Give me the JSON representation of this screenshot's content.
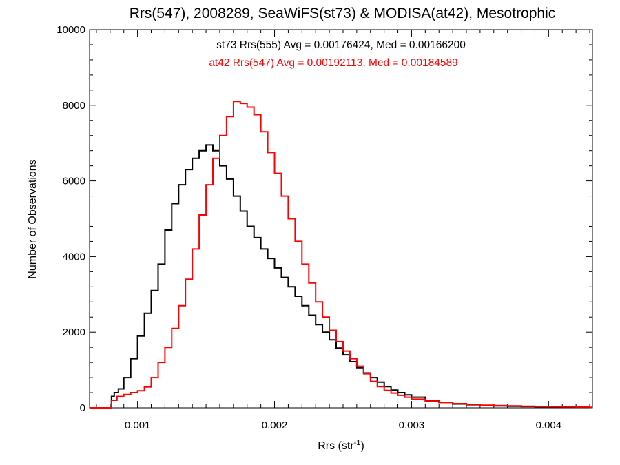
{
  "chart_data": {
    "type": "line",
    "title": "Rrs(547), 2008289, SeaWiFS(st73) & MODISA(at42), Mesotrophic",
    "xlabel": "Rrs (str",
    "xlabel_sup": "-1",
    "xlabel_end": ")",
    "ylabel": "Number of Observations",
    "xlim": [
      0.00065,
      0.00432
    ],
    "ylim": [
      0,
      10000
    ],
    "x_ticks": [
      0.001,
      0.002,
      0.003,
      0.004
    ],
    "x_tick_labels": [
      "0.001",
      "0.002",
      "0.003",
      "0.004"
    ],
    "y_ticks": [
      0,
      2000,
      4000,
      6000,
      8000,
      10000
    ],
    "y_tick_labels": [
      "0",
      "2000",
      "4000",
      "6000",
      "8000",
      "10000"
    ],
    "grid": false,
    "annotations": [
      {
        "text": "st73 Rrs(555) Avg = 0.00176424, Med = 0.00166200",
        "color": "#000000"
      },
      {
        "text": "at42 Rrs(547) Avg = 0.00192113, Med = 0.00184589",
        "color": "#ff0000"
      }
    ],
    "series": [
      {
        "color": "#000000",
        "x": [
          0.00065,
          0.0008,
          0.00081,
          0.00083,
          0.00086,
          0.0009,
          0.00095,
          0.001,
          0.00105,
          0.0011,
          0.00115,
          0.0012,
          0.00125,
          0.0013,
          0.00135,
          0.0014,
          0.00145,
          0.0015,
          0.00155,
          0.0016,
          0.00165,
          0.0017,
          0.00175,
          0.0018,
          0.00185,
          0.0019,
          0.00195,
          0.002,
          0.00205,
          0.0021,
          0.00215,
          0.0022,
          0.00225,
          0.0023,
          0.00235,
          0.0024,
          0.00245,
          0.0025,
          0.00255,
          0.0026,
          0.00265,
          0.0027,
          0.00275,
          0.0028,
          0.00285,
          0.0029,
          0.00295,
          0.003,
          0.0031,
          0.0032,
          0.0033,
          0.0034,
          0.0035,
          0.0036,
          0.0037,
          0.0038,
          0.0039,
          0.004,
          0.0041,
          0.0042,
          0.0043
        ],
        "y": [
          0,
          0,
          300,
          400,
          500,
          800,
          1300,
          1900,
          2500,
          3100,
          3800,
          4700,
          5400,
          5900,
          6300,
          6600,
          6800,
          6950,
          6800,
          6400,
          6050,
          5600,
          5200,
          4800,
          4500,
          4200,
          3950,
          3700,
          3450,
          3200,
          2950,
          2700,
          2450,
          2200,
          2000,
          1800,
          1580,
          1400,
          1220,
          1060,
          920,
          800,
          680,
          560,
          470,
          400,
          340,
          280,
          200,
          140,
          100,
          80,
          60,
          50,
          40,
          35,
          30,
          25,
          20,
          15,
          10
        ]
      },
      {
        "color": "#ff0000",
        "x": [
          0.00065,
          0.0008,
          0.00081,
          0.00085,
          0.0009,
          0.00095,
          0.001,
          0.00105,
          0.0011,
          0.00115,
          0.0012,
          0.00125,
          0.0013,
          0.00135,
          0.0014,
          0.00145,
          0.0015,
          0.00155,
          0.0016,
          0.00165,
          0.0017,
          0.00175,
          0.0018,
          0.00185,
          0.0019,
          0.00195,
          0.002,
          0.00205,
          0.0021,
          0.00215,
          0.0022,
          0.00225,
          0.0023,
          0.00235,
          0.0024,
          0.00245,
          0.0025,
          0.00255,
          0.0026,
          0.00265,
          0.0027,
          0.00275,
          0.0028,
          0.00285,
          0.0029,
          0.00295,
          0.003,
          0.0031,
          0.0032,
          0.0033,
          0.0034,
          0.0035,
          0.0036,
          0.0037,
          0.0038,
          0.0039,
          0.004,
          0.0041,
          0.0042,
          0.0043
        ],
        "y": [
          0,
          0,
          200,
          300,
          350,
          400,
          450,
          550,
          800,
          1200,
          1600,
          2100,
          2700,
          3400,
          4200,
          5100,
          5900,
          6600,
          7200,
          7700,
          8100,
          8050,
          7950,
          7750,
          7300,
          6750,
          6200,
          5600,
          5000,
          4400,
          3800,
          3300,
          2800,
          2400,
          2050,
          1750,
          1500,
          1300,
          1100,
          900,
          700,
          560,
          460,
          390,
          330,
          280,
          230,
          180,
          140,
          110,
          85,
          70,
          60,
          50,
          40,
          35,
          30,
          25,
          20,
          15
        ]
      }
    ]
  }
}
